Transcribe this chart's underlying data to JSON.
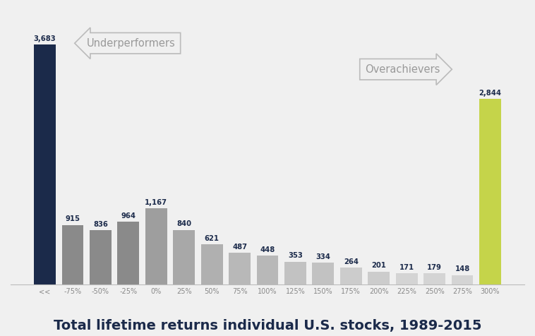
{
  "labels": [
    "<<",
    "-75%",
    "-50%",
    "-25%",
    "0%",
    "25%",
    "50%",
    "75%",
    "100%",
    "125%",
    "150%",
    "175%",
    "200%",
    "225%",
    "250%",
    "275%",
    "300%",
    ">>"
  ],
  "values": [
    3683,
    915,
    836,
    964,
    1167,
    840,
    621,
    487,
    448,
    353,
    334,
    264,
    201,
    171,
    179,
    148,
    2844,
    0
  ],
  "bar_colors": [
    "#1b2a4a",
    "#8a8a8a",
    "#8a8a8a",
    "#8a8a8a",
    "#9e9e9e",
    "#a8a8a8",
    "#b0b0b0",
    "#b8b8b8",
    "#b8b8b8",
    "#c2c2c2",
    "#c2c2c2",
    "#cccccc",
    "#cccccc",
    "#d4d4d4",
    "#d4d4d4",
    "#d4d4d4",
    "#c5d44a",
    "#ffffff"
  ],
  "title": "Total lifetime returns individual U.S. stocks, 1989-2015",
  "title_fontsize": 14,
  "underperformers_label": "Underperformers",
  "overachievers_label": "Overachievers",
  "ylim": [
    0,
    4200
  ],
  "background_color": "#f0f0f0",
  "label_color": "#1b2a4a",
  "axis_label_color": "#888888",
  "annotation_color": "#999999"
}
